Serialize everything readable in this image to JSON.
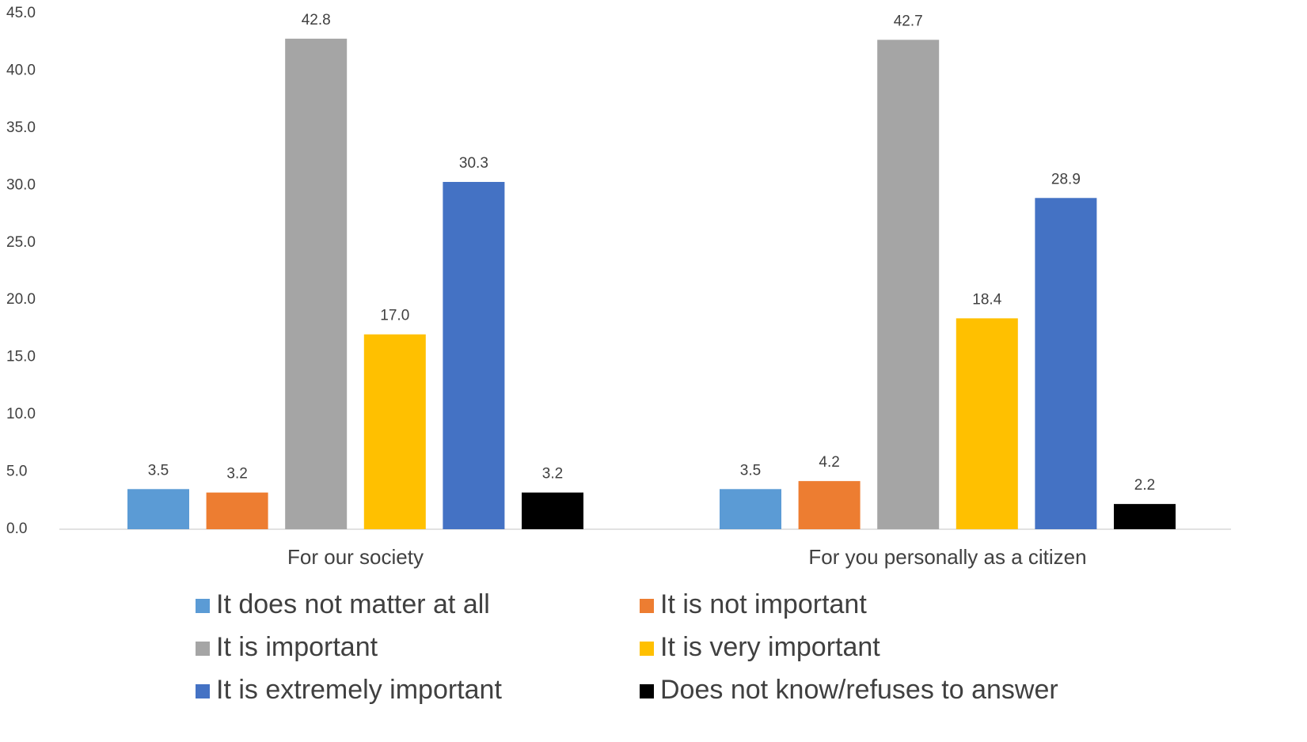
{
  "chart_data": {
    "type": "bar",
    "categories": [
      "For our society",
      "For you personally as a citizen"
    ],
    "series": [
      {
        "name": "It does not matter at all",
        "color": "#5b9bd5",
        "values": [
          3.5,
          3.5
        ],
        "value_labels": [
          "3.5",
          "3.5"
        ]
      },
      {
        "name": "It is not important",
        "color": "#ed7d31",
        "values": [
          3.2,
          4.2
        ],
        "value_labels": [
          "3.2",
          "4.2"
        ]
      },
      {
        "name": "It is important",
        "color": "#a5a5a5",
        "values": [
          42.8,
          42.7
        ],
        "value_labels": [
          "42.8",
          "42.7"
        ]
      },
      {
        "name": "It is very important",
        "color": "#ffc000",
        "values": [
          17.0,
          18.4
        ],
        "value_labels": [
          "17.0",
          "18.4"
        ]
      },
      {
        "name": "It is extremely important",
        "color": "#4472c4",
        "values": [
          30.3,
          28.9
        ],
        "value_labels": [
          "30.3",
          "28.9"
        ]
      },
      {
        "name": "Does not know/refuses to answer",
        "color": "#000000",
        "values": [
          3.2,
          2.2
        ],
        "value_labels": [
          "3.2",
          "2.2"
        ]
      }
    ],
    "ylim": [
      0,
      45
    ],
    "yticks": [
      {
        "value": 0,
        "label": "0.0"
      },
      {
        "value": 5,
        "label": "5.0"
      },
      {
        "value": 10,
        "label": "10.0"
      },
      {
        "value": 15,
        "label": "15.0"
      },
      {
        "value": 20,
        "label": "20.0"
      },
      {
        "value": 25,
        "label": "25.0"
      },
      {
        "value": 30,
        "label": "30.0"
      },
      {
        "value": 35,
        "label": "35.0"
      },
      {
        "value": 40,
        "label": "40.0"
      },
      {
        "value": 45,
        "label": "45.0"
      }
    ],
    "grid": false,
    "legend": "bottom"
  }
}
